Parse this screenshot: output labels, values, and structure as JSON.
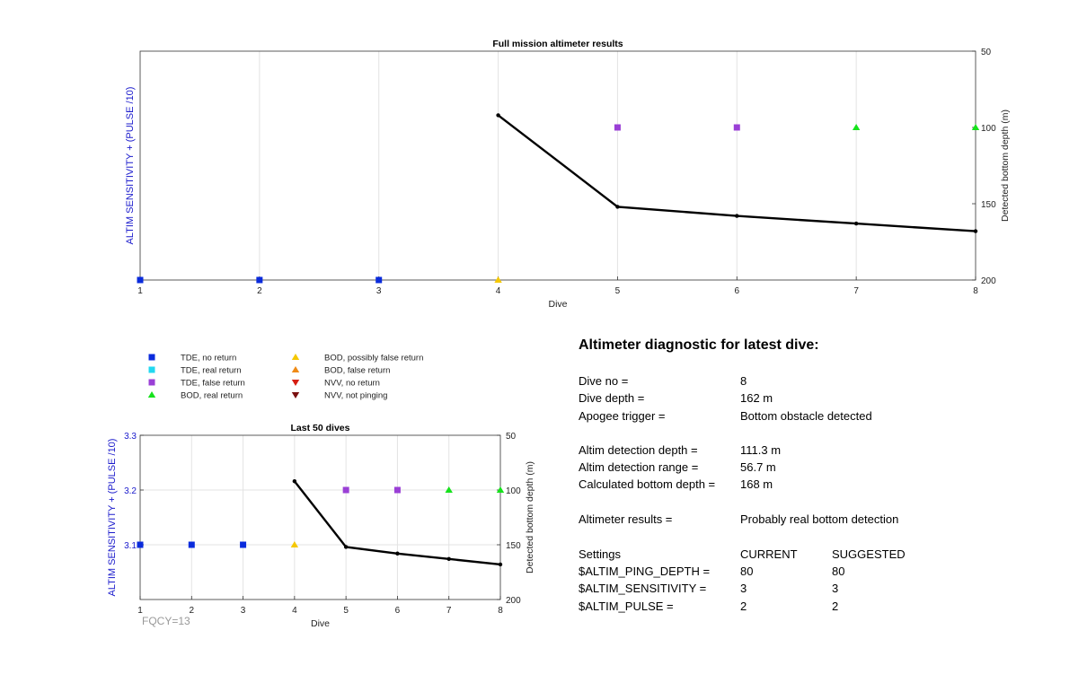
{
  "chart_data": [
    {
      "type": "scatter",
      "title": "Full mission altimeter results",
      "xlabel": "Dive",
      "ylabel_left": "ALTIM SENSITIVITY + (PULSE /10)",
      "ylabel_right": "Detected bottom depth (m)",
      "xlim": [
        1,
        8
      ],
      "xticks": [
        "1",
        "2",
        "3",
        "4",
        "5",
        "6",
        "7",
        "8"
      ],
      "right_ylim": [
        50,
        200
      ],
      "right_yticks": [
        "50",
        "100",
        "150",
        "200"
      ],
      "right_axis_reversed": true,
      "grid": "vertical",
      "markers": [
        {
          "x": 1,
          "depth": 200,
          "category": "TDE, no return"
        },
        {
          "x": 2,
          "depth": 200,
          "category": "TDE, no return"
        },
        {
          "x": 3,
          "depth": 200,
          "category": "TDE, no return"
        },
        {
          "x": 4,
          "depth": 200,
          "category": "BOD, possibly false return"
        },
        {
          "x": 5,
          "depth": 100,
          "category": "TDE, false return"
        },
        {
          "x": 6,
          "depth": 100,
          "category": "TDE, false return"
        },
        {
          "x": 7,
          "depth": 100,
          "category": "BOD, real return"
        },
        {
          "x": 8,
          "depth": 100,
          "category": "BOD, real return"
        }
      ],
      "series": [
        {
          "x": [
            4,
            5,
            6,
            7,
            8
          ],
          "values": [
            92,
            152,
            158,
            163,
            168
          ]
        }
      ]
    },
    {
      "type": "scatter",
      "title": "Last 50 dives",
      "xlabel": "Dive",
      "ylabel_left": "ALTIM SENSITIVITY + (PULSE /10)",
      "ylabel_right": "Detected bottom depth (m)",
      "xlim": [
        1,
        8
      ],
      "xticks": [
        "1",
        "2",
        "3",
        "4",
        "5",
        "6",
        "7",
        "8"
      ],
      "left_ylim": [
        3.0,
        3.3
      ],
      "left_yticks": [
        "3.1",
        "3.2",
        "3.3"
      ],
      "right_ylim": [
        50,
        200
      ],
      "right_yticks": [
        "50",
        "100",
        "150",
        "200"
      ],
      "right_axis_reversed": true,
      "grid": "both",
      "markers": [
        {
          "x": 1,
          "y": 3.1,
          "category": "TDE, no return"
        },
        {
          "x": 2,
          "y": 3.1,
          "category": "TDE, no return"
        },
        {
          "x": 3,
          "y": 3.1,
          "category": "TDE, no return"
        },
        {
          "x": 4,
          "y": 3.1,
          "category": "BOD, possibly false return"
        },
        {
          "x": 5,
          "y": 3.2,
          "category": "TDE, false return"
        },
        {
          "x": 6,
          "y": 3.2,
          "category": "TDE, false return"
        },
        {
          "x": 7,
          "y": 3.2,
          "category": "BOD, real return"
        },
        {
          "x": 8,
          "y": 3.2,
          "category": "BOD, real return"
        }
      ],
      "series": [
        {
          "x": [
            4,
            5,
            6,
            7,
            8
          ],
          "values": [
            92,
            152,
            158,
            163,
            168
          ]
        }
      ],
      "annotation": "FQCY=13"
    }
  ],
  "legend": [
    {
      "label": "TDE, no return",
      "marker": "square",
      "color": "#0a2bdc"
    },
    {
      "label": "TDE, real return",
      "marker": "square",
      "color": "#22d8f0"
    },
    {
      "label": "TDE, false return",
      "marker": "square",
      "color": "#9a3fd6"
    },
    {
      "label": "BOD, real return",
      "marker": "triangle-up",
      "color": "#16e21c"
    },
    {
      "label": "BOD, possibly false return",
      "marker": "triangle-up",
      "color": "#f5c800"
    },
    {
      "label": "BOD, false return",
      "marker": "triangle-up",
      "color": "#ef8a16"
    },
    {
      "label": "NVV, no return",
      "marker": "triangle-down",
      "color": "#d61e12"
    },
    {
      "label": "NVV, not pinging",
      "marker": "triangle-down",
      "color": "#7a1010"
    }
  ],
  "colors": {
    "left_axis_label": "#1a1acc",
    "annotation": "#999999",
    "line": "#000000",
    "grid": "#e3e3e3",
    "axis": "#333333"
  },
  "diagnostic": {
    "title": "Altimeter diagnostic for latest dive:",
    "rows": [
      {
        "label": "Dive no =",
        "value": "8"
      },
      {
        "label": "Dive depth =",
        "value": "162 m"
      },
      {
        "label": "Apogee trigger =",
        "value": "Bottom obstacle detected"
      },
      {
        "label": "Altim detection depth =",
        "value": "111.3 m"
      },
      {
        "label": "Altim detection range =",
        "value": "56.7 m"
      },
      {
        "label": "Calculated bottom depth =",
        "value": "168 m"
      },
      {
        "label": "Altimeter results =",
        "value": "Probably real bottom detection"
      }
    ],
    "settings_header": {
      "label": "Settings",
      "current": "CURRENT",
      "suggested": "SUGGESTED"
    },
    "settings": [
      {
        "label": "$ALTIM_PING_DEPTH =",
        "current": "80",
        "suggested": "80"
      },
      {
        "label": "$ALTIM_SENSITIVITY =",
        "current": "3",
        "suggested": "3"
      },
      {
        "label": "$ALTIM_PULSE =",
        "current": "2",
        "suggested": "2"
      }
    ]
  }
}
